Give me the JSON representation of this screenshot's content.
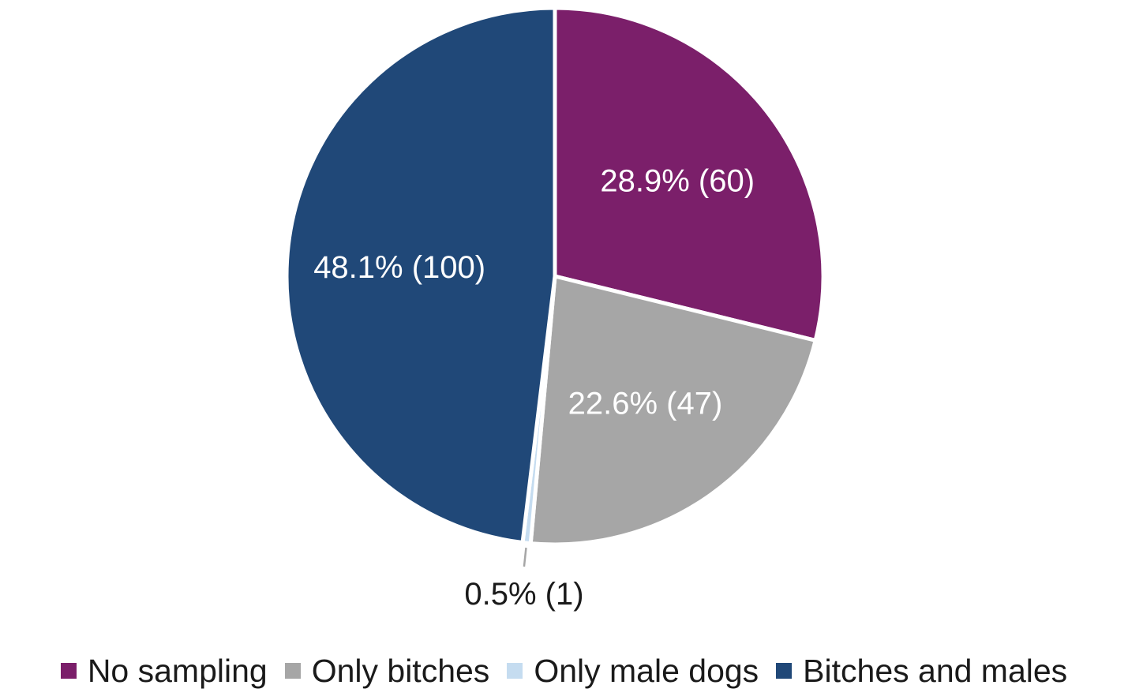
{
  "chart_data": {
    "type": "pie",
    "title": "",
    "slices": [
      {
        "name": "No sampling",
        "value": 60,
        "percent": 28.9,
        "label": "28.9% (60)",
        "color": "#7b1f6a"
      },
      {
        "name": "Only bitches",
        "value": 47,
        "percent": 22.6,
        "label": "22.6% (47)",
        "color": "#a6a6a6"
      },
      {
        "name": "Only male dogs",
        "value": 1,
        "percent": 0.5,
        "label": "0.5% (1)",
        "color": "#c5dcf0"
      },
      {
        "name": "Bitches and males",
        "value": 100,
        "percent": 48.1,
        "label": "48.1% (100)",
        "color": "#204878"
      }
    ],
    "start_angle_deg": 0,
    "direction": "clockwise",
    "legend_position": "bottom"
  }
}
